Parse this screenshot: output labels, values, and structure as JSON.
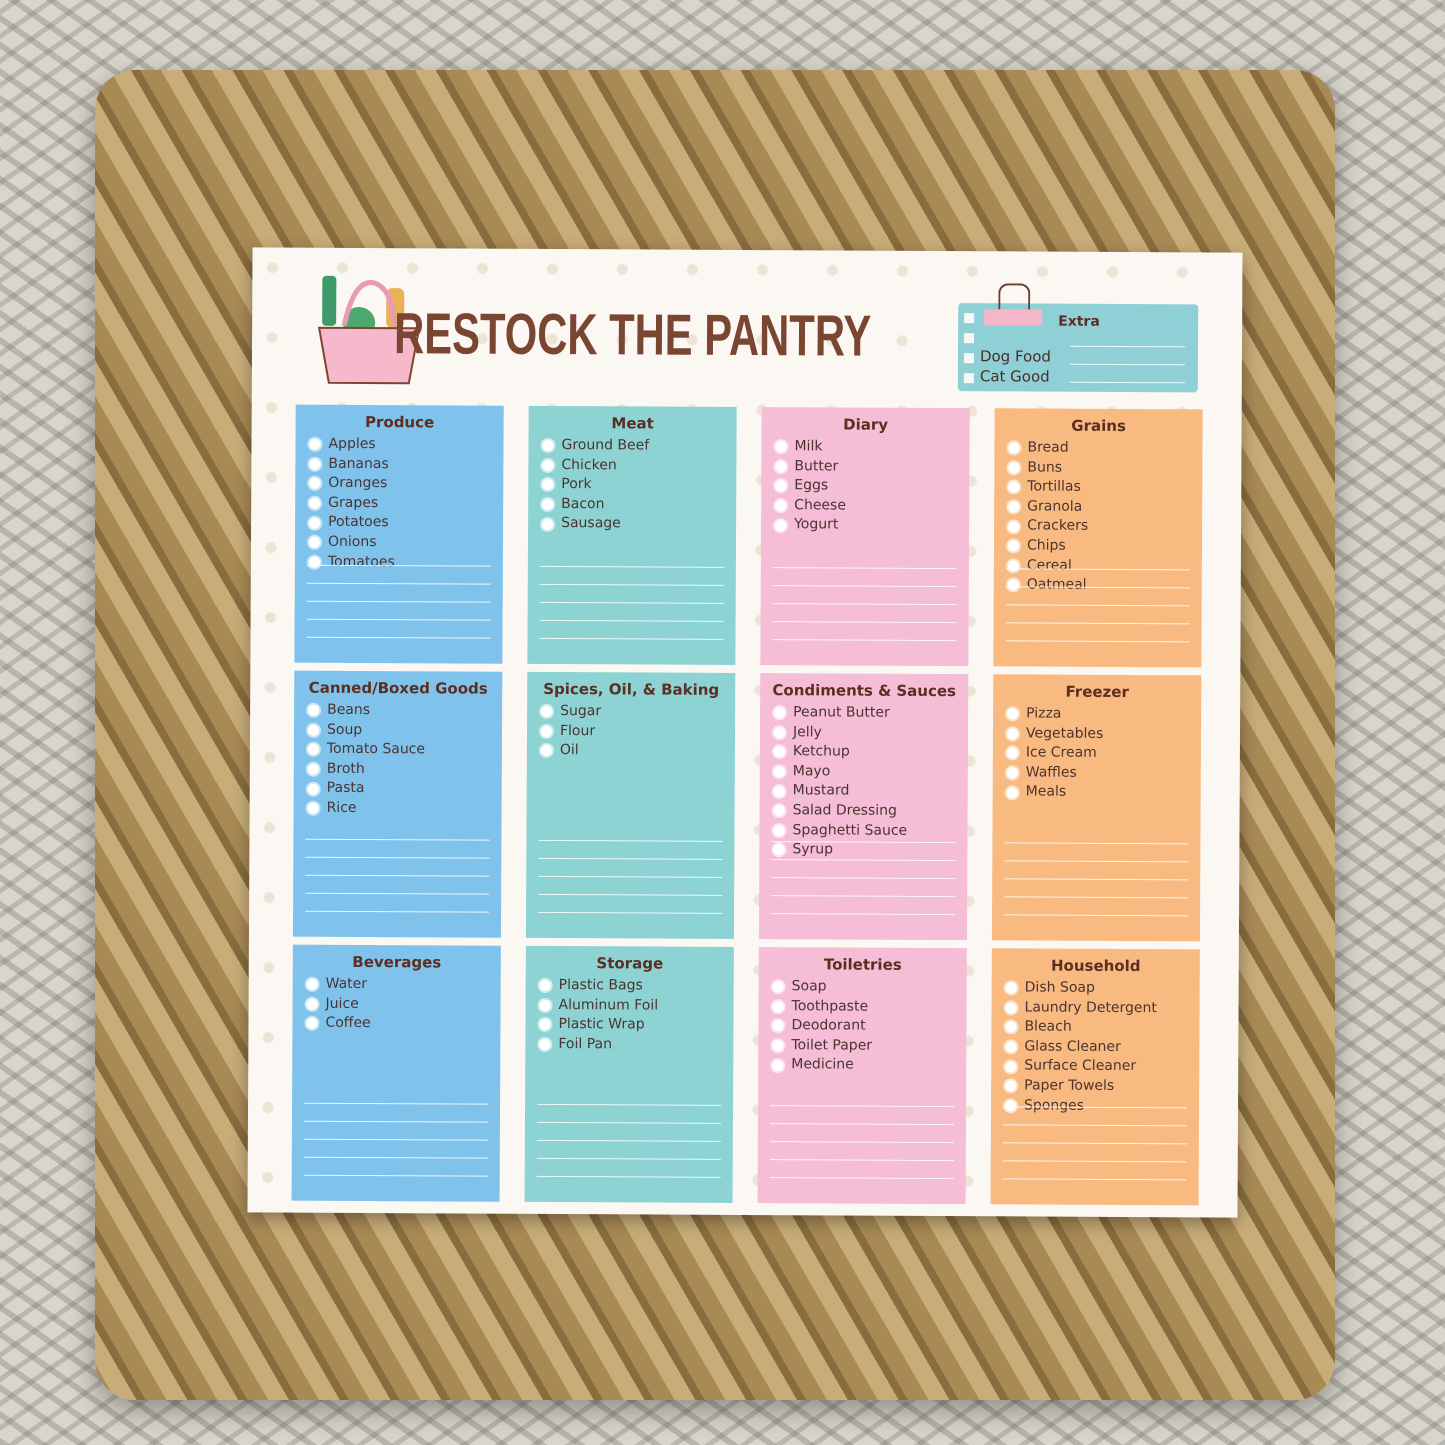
{
  "title": "RESTOCK THE PANTRY",
  "colors": {
    "blue": "#7fc3ec",
    "teal": "#8dd3d3",
    "pink": "#f5bdd6",
    "orange": "#f8ba80",
    "title": "#7a4632"
  },
  "extra": {
    "heading": "Extra",
    "items": [
      "Dog Food",
      "Cat Good"
    ]
  },
  "sections": [
    {
      "heading": "Produce",
      "color": "blue",
      "items": [
        "Apples",
        "Bananas",
        "Oranges",
        "Grapes",
        "Potatoes",
        "Onions",
        "Tomatoes"
      ]
    },
    {
      "heading": "Meat",
      "color": "teal",
      "items": [
        "Ground Beef",
        "Chicken",
        "Pork",
        "Bacon",
        "Sausage"
      ]
    },
    {
      "heading": "Diary",
      "color": "pink",
      "items": [
        "Milk",
        "Butter",
        "Eggs",
        "Cheese",
        "Yogurt"
      ]
    },
    {
      "heading": "Grains",
      "color": "orange",
      "items": [
        "Bread",
        "Buns",
        "Tortillas",
        "Granola",
        "Crackers",
        "Chips",
        "Cereal",
        "Oatmeal"
      ]
    },
    {
      "heading": "Canned/Boxed Goods",
      "color": "blue",
      "items": [
        "Beans",
        "Soup",
        "Tomato Sauce",
        "Broth",
        "Pasta",
        "Rice"
      ]
    },
    {
      "heading": "Spices, Oil, & Baking",
      "color": "teal",
      "items": [
        "Sugar",
        "Flour",
        "Oil"
      ]
    },
    {
      "heading": "Condiments & Sauces",
      "color": "pink",
      "items": [
        "Peanut Butter",
        "Jelly",
        "Ketchup",
        "Mayo",
        "Mustard",
        "Salad Dressing",
        "Spaghetti Sauce",
        "Syrup"
      ]
    },
    {
      "heading": "Freezer",
      "color": "orange",
      "items": [
        "Pizza",
        "Vegetables",
        "Ice Cream",
        "Waffles",
        "Meals"
      ]
    },
    {
      "heading": "Beverages",
      "color": "blue",
      "items": [
        "Water",
        "Juice",
        "Coffee"
      ]
    },
    {
      "heading": "Storage",
      "color": "teal",
      "items": [
        "Plastic Bags",
        "Aluminum Foil",
        "Plastic Wrap",
        "Foil Pan"
      ]
    },
    {
      "heading": "Toiletries",
      "color": "pink",
      "items": [
        "Soap",
        "Toothpaste",
        "Deodorant",
        "Toilet Paper",
        "Medicine"
      ]
    },
    {
      "heading": "Household",
      "color": "orange",
      "items": [
        "Dish Soap",
        "Laundry Detergent",
        "Bleach",
        "Glass Cleaner",
        "Surface Cleaner",
        "Paper Towels",
        "Sponges"
      ]
    }
  ]
}
